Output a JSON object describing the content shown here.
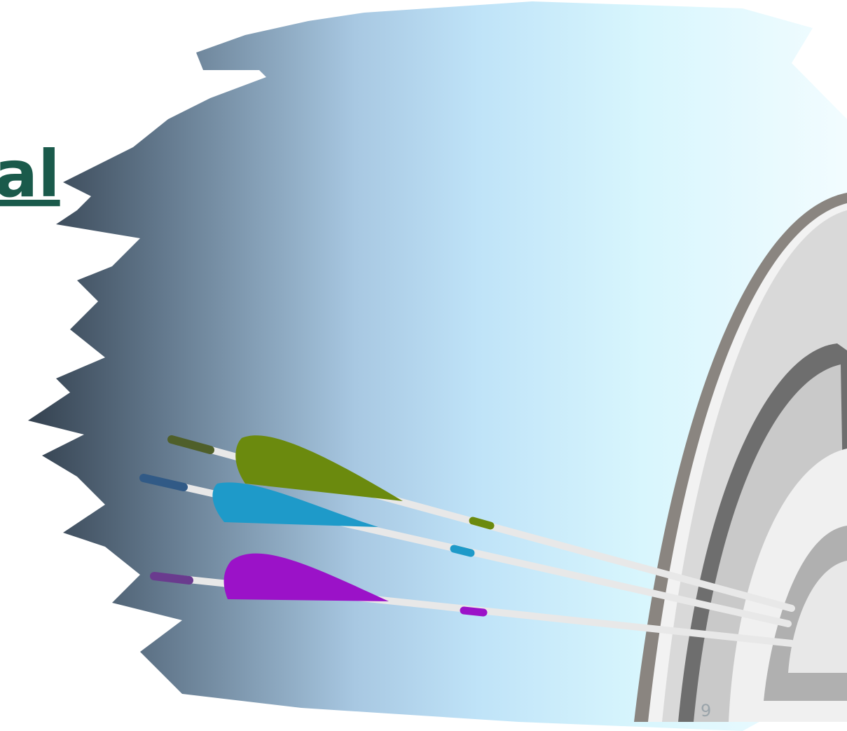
{
  "title": "al",
  "page_number": "9"
}
